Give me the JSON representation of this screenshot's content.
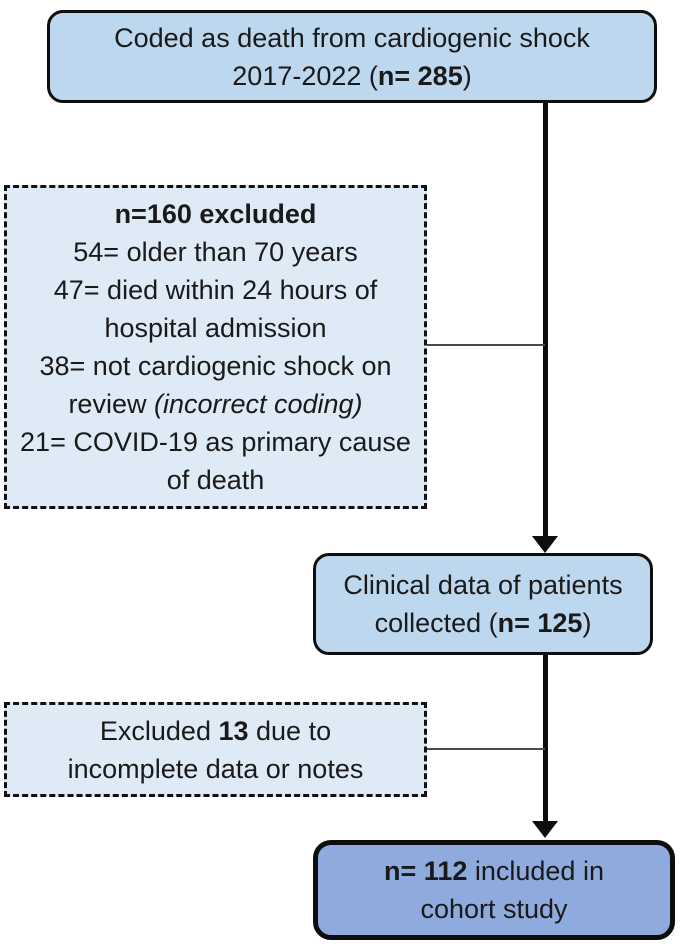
{
  "figure": {
    "type": "patient-flowchart",
    "background": "#ffffff",
    "text_color": "#1a1a1a",
    "colors": {
      "solid_box_fill": "#bdd7ee",
      "dashed_box_fill": "#deeaf6",
      "final_box_fill": "#8faadc",
      "line_and_border": "#0d0d0d",
      "thin_connector": "#4a4a4a"
    },
    "boxes": {
      "coded_deaths": {
        "line1": "Coded as death from cardiogenic shock",
        "line2_prefix": "2017-2022 (",
        "line2_bold": "n= 285",
        "line2_suffix": ")"
      },
      "excluded_160": {
        "title": "n=160 excluded",
        "item_1": "54= older than 70 years",
        "item_2": "47= died within 24 hours of hospital admission",
        "item_3_prefix": "38= not cardiogenic shock on review ",
        "item_3_italic": "(incorrect coding)",
        "item_4": "21= COVID-19 as primary cause of death"
      },
      "clinical_data": {
        "line1": "Clinical data of patients",
        "line2_prefix": "collected (",
        "line2_bold": "n= 125",
        "line2_suffix": ")"
      },
      "excluded_13": {
        "line1_prefix": "Excluded ",
        "line1_bold": "13",
        "line1_suffix": " due to",
        "line2": "incomplete data or notes"
      },
      "cohort": {
        "line1_bold": "n= 112",
        "line1_suffix": " included in",
        "line2": "cohort study"
      }
    }
  }
}
